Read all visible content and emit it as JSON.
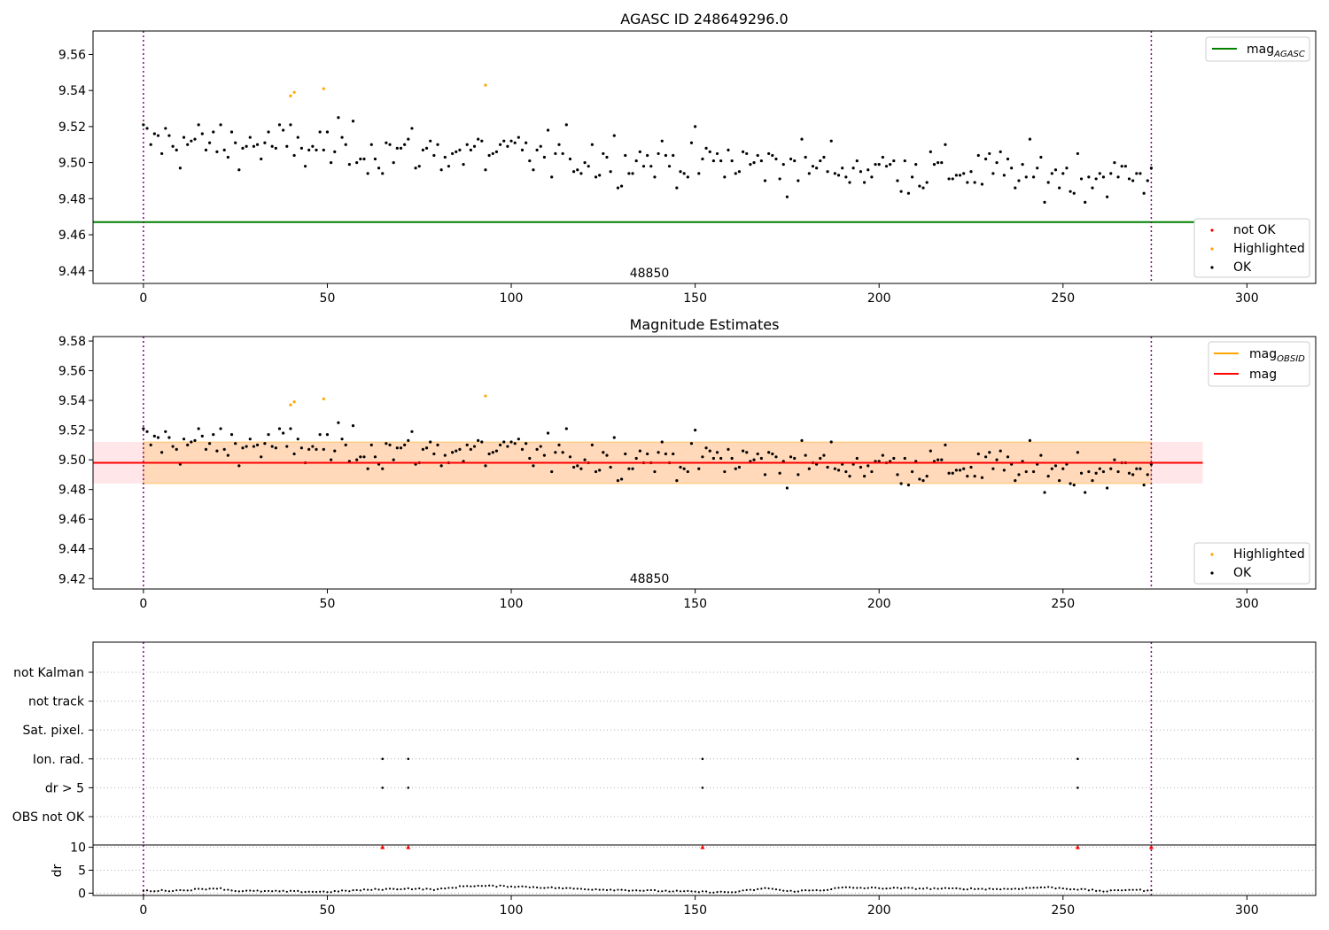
{
  "chart_data": [
    {
      "type": "scatter",
      "title": "AGASC ID 248649296.0",
      "obsid_label": "48850",
      "ylim": [
        9.433,
        9.573
      ],
      "xlim": [
        -13.7,
        318.7
      ],
      "yticks": [
        9.44,
        9.46,
        9.48,
        9.5,
        9.52,
        9.54,
        9.56
      ],
      "xticks": [
        0,
        50,
        100,
        150,
        200,
        250,
        300
      ],
      "vlines": [
        0,
        274
      ],
      "hline": {
        "name": "mag",
        "sub": "AGASC",
        "value": 9.467,
        "color": "#008000"
      },
      "legend": {
        "lines": [
          {
            "name": "mag",
            "sub": "AGASC",
            "color": "#008000"
          }
        ],
        "markers": [
          {
            "name": "not OK",
            "color": "#ff0000"
          },
          {
            "name": "Highlighted",
            "color": "#ffa500"
          },
          {
            "name": "OK",
            "color": "#000000"
          }
        ]
      },
      "highlighted_points": [
        [
          40.0,
          9.537
        ],
        [
          41.0,
          9.539
        ],
        [
          49.0,
          9.541
        ],
        [
          93.0,
          9.543
        ]
      ]
    },
    {
      "type": "scatter",
      "title": "Magnitude Estimates",
      "obsid_label": "48850",
      "ylim": [
        9.413,
        9.583
      ],
      "xlim": [
        -13.7,
        318.7
      ],
      "yticks": [
        9.42,
        9.44,
        9.46,
        9.48,
        9.5,
        9.52,
        9.54,
        9.56,
        9.58
      ],
      "xticks": [
        0,
        50,
        100,
        150,
        200,
        250,
        300
      ],
      "vlines": [
        0,
        274
      ],
      "mag_line": {
        "name": "mag",
        "value": 9.498,
        "x_range": [
          -13.7,
          288
        ],
        "band": [
          9.484,
          9.512
        ],
        "color": "#ff0000"
      },
      "mag_obsid_line": {
        "name": "mag",
        "sub": "OBSID",
        "value": 9.498,
        "x_range": [
          0,
          274
        ],
        "band": [
          9.484,
          9.512
        ],
        "color": "#ffa500"
      },
      "legend": {
        "lines": [
          {
            "name": "mag",
            "sub": "OBSID",
            "color": "#ffa500"
          },
          {
            "name": "mag",
            "sub": "",
            "color": "#ff0000"
          }
        ],
        "markers": [
          {
            "name": "Highlighted",
            "color": "#ffa500"
          },
          {
            "name": "OK",
            "color": "#000000"
          }
        ]
      },
      "highlighted_points": [
        [
          40.0,
          9.537
        ],
        [
          41.0,
          9.539
        ],
        [
          49.0,
          9.541
        ],
        [
          93.0,
          9.543
        ]
      ]
    },
    {
      "type": "scatter",
      "title": "",
      "flags": [
        "not Kalman",
        "not track",
        "Sat. pixel.",
        "Ion. rad.",
        "dr > 5",
        "OBS not OK"
      ],
      "flag_points": {
        "Ion. rad.": [
          65,
          72,
          152,
          254
        ],
        "dr > 5": [
          65,
          72,
          152,
          254
        ]
      },
      "xlim": [
        -13.7,
        318.7
      ],
      "xticks": [
        0,
        50,
        100,
        150,
        200,
        250,
        300
      ],
      "vlines": [
        0,
        274
      ]
    },
    {
      "type": "scatter",
      "ylabel": "dr",
      "ylim": [
        -0.5,
        10.5
      ],
      "yticks": [
        0,
        5,
        10
      ],
      "xlim": [
        -13.7,
        318.7
      ],
      "xticks": [
        0,
        50,
        100,
        150,
        200,
        250,
        300
      ],
      "vlines": [
        0,
        274
      ],
      "capped_points": {
        "x": [
          65,
          72,
          152,
          254,
          274
        ],
        "value": 10,
        "color": "#ff0000"
      },
      "dr_profile": [
        [
          0,
          0.5
        ],
        [
          10,
          0.6
        ],
        [
          20,
          1.1
        ],
        [
          25,
          0.5
        ],
        [
          35,
          0.4
        ],
        [
          50,
          0.3
        ],
        [
          63,
          0.8
        ],
        [
          72,
          1.0
        ],
        [
          80,
          0.8
        ],
        [
          88,
          1.6
        ],
        [
          100,
          1.5
        ],
        [
          110,
          1.2
        ],
        [
          120,
          0.9
        ],
        [
          135,
          0.6
        ],
        [
          150,
          0.3
        ],
        [
          160,
          0.2
        ],
        [
          170,
          1.1
        ],
        [
          175,
          0.4
        ],
        [
          185,
          0.7
        ],
        [
          190,
          1.2
        ],
        [
          200,
          1.1
        ],
        [
          215,
          1.0
        ],
        [
          235,
          0.9
        ],
        [
          245,
          1.3
        ],
        [
          255,
          0.8
        ],
        [
          262,
          0.4
        ],
        [
          268,
          0.8
        ],
        [
          274,
          0.5
        ]
      ]
    }
  ]
}
